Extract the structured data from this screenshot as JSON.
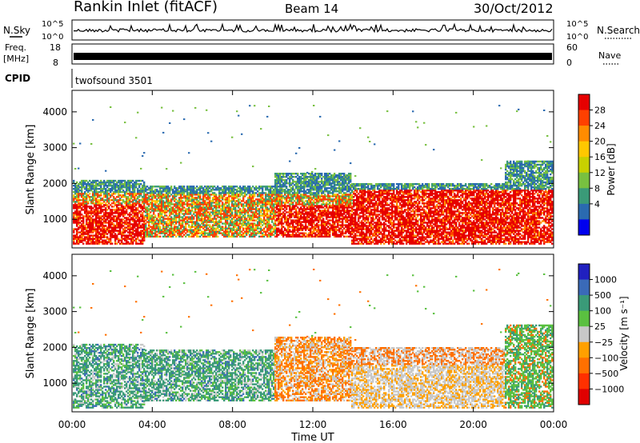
{
  "header": {
    "title": "Rankin Inlet (fitACF)",
    "beam": "Beam 14",
    "date": "30/Oct/2012"
  },
  "panels": {
    "nsky_label": "N.Sky",
    "nsky_ticks": [
      "10^5",
      "10^0"
    ],
    "nsearch_label": "N.Search",
    "freq_label_1": "Freq.",
    "freq_label_2": "[MHz]",
    "freq_ticks": [
      "18",
      "8"
    ],
    "nave_label": "Nave",
    "nave_ticks": [
      "60",
      "0"
    ],
    "cpid_label": "CPID",
    "cpid_value": "twofsound 3501"
  },
  "chart_data": [
    {
      "type": "heatmap",
      "name": "power",
      "ylabel": "Slant Range [km]",
      "ylim": [
        200,
        4600
      ],
      "yticks": [
        1000,
        2000,
        3000,
        4000
      ],
      "xlabel": "Time UT",
      "xticks": [
        "00:00",
        "04:00",
        "08:00",
        "12:00",
        "16:00",
        "20:00",
        "00:00"
      ],
      "colorbar": {
        "label": "Power [dB]",
        "ticks": [
          "28",
          "24",
          "20",
          "16",
          "12",
          "8",
          "4"
        ],
        "colors": [
          "#e60000",
          "#ff4000",
          "#ff8c00",
          "#ffc800",
          "#c8d000",
          "#78c040",
          "#3a9a78",
          "#2a6ab0",
          "#0000ee"
        ]
      }
    },
    {
      "type": "heatmap",
      "name": "velocity",
      "ylabel": "Slant Range [km]",
      "ylim": [
        200,
        4600
      ],
      "yticks": [
        1000,
        2000,
        3000,
        4000
      ],
      "xlabel": "Time UT",
      "xticks": [
        "00:00",
        "04:00",
        "08:00",
        "12:00",
        "16:00",
        "20:00",
        "00:00"
      ],
      "colorbar": {
        "label": "Velocity [m s⁻¹]",
        "ticks": [
          "1000",
          "500",
          "100",
          "25",
          "−25",
          "−100",
          "−500",
          "−1000"
        ],
        "colors": [
          "#2020c0",
          "#3a6ab8",
          "#3a9a78",
          "#5ac040",
          "#c8c8c8",
          "#ffa000",
          "#ff7000",
          "#ff3000",
          "#e00000"
        ]
      }
    }
  ]
}
